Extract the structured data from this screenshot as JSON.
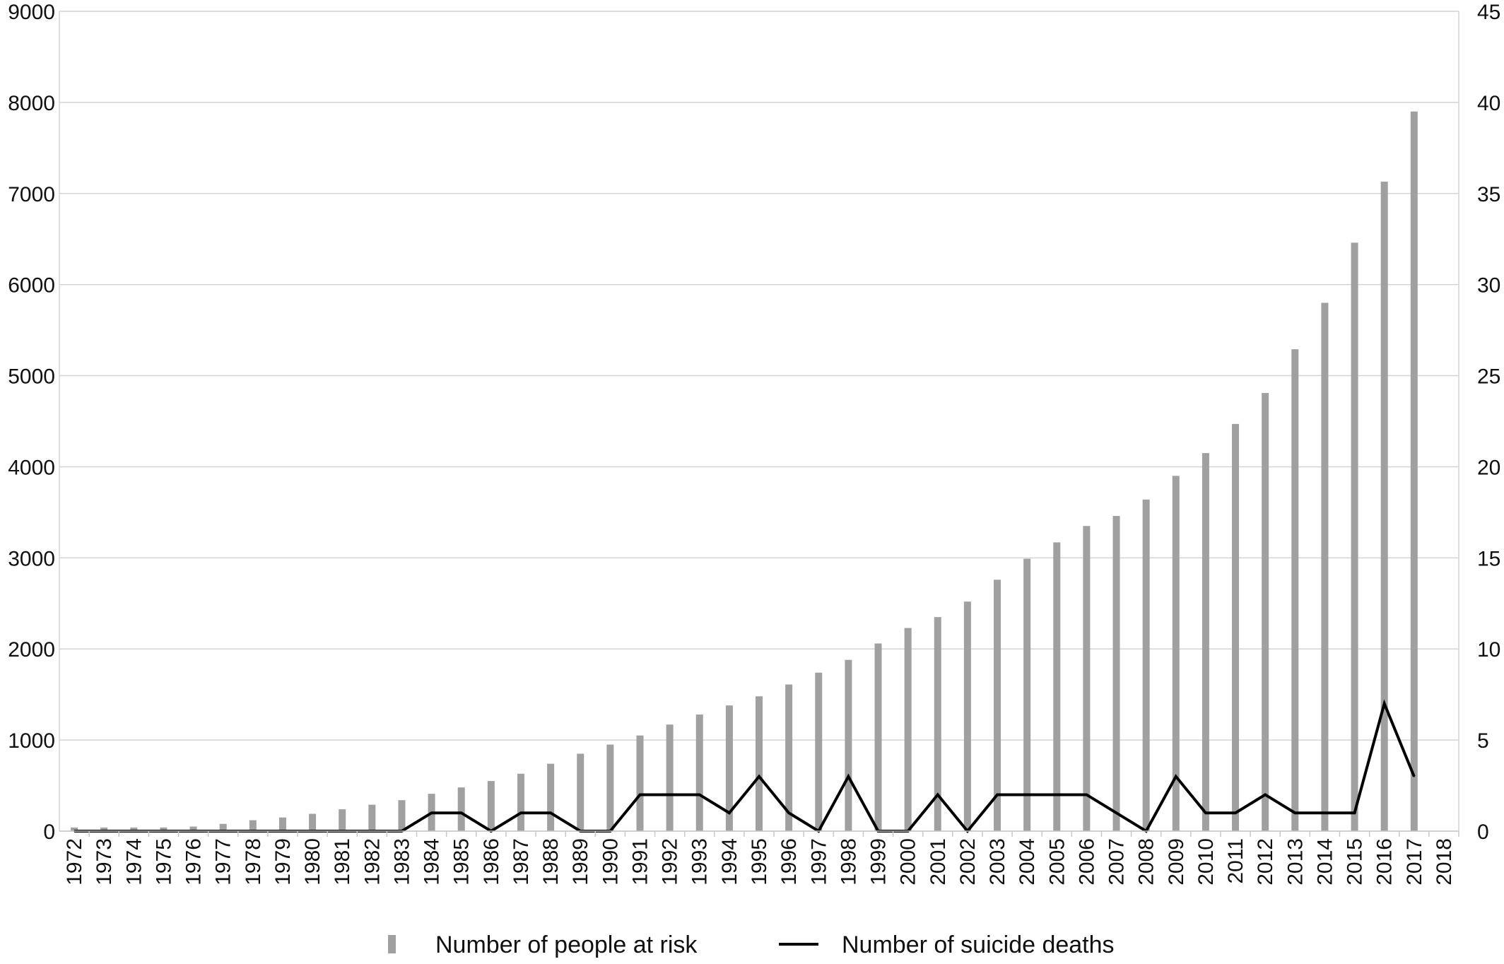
{
  "chart_data": {
    "type": "bar",
    "categories": [
      "1972",
      "1973",
      "1974",
      "1975",
      "1976",
      "1977",
      "1978",
      "1979",
      "1980",
      "1981",
      "1982",
      "1983",
      "1984",
      "1985",
      "1986",
      "1987",
      "1988",
      "1989",
      "1990",
      "1991",
      "1992",
      "1993",
      "1994",
      "1995",
      "1996",
      "1997",
      "1998",
      "1999",
      "2000",
      "2001",
      "2002",
      "2003",
      "2004",
      "2005",
      "2006",
      "2007",
      "2008",
      "2009",
      "2010",
      "2011",
      "2012",
      "2013",
      "2014",
      "2015",
      "2016",
      "2017",
      "2018"
    ],
    "series": [
      {
        "name": "Number of people at risk",
        "type": "bar",
        "axis": "left",
        "color": "#a0a0a0",
        "values": [
          40,
          40,
          40,
          40,
          50,
          80,
          120,
          150,
          190,
          240,
          290,
          340,
          410,
          480,
          550,
          630,
          740,
          850,
          950,
          1050,
          1170,
          1280,
          1380,
          1480,
          1610,
          1740,
          1880,
          2060,
          2230,
          2350,
          2520,
          2760,
          2990,
          3170,
          3350,
          3460,
          3640,
          3900,
          4150,
          4470,
          4810,
          5290,
          5800,
          6460,
          7130,
          7900,
          null
        ]
      },
      {
        "name": "Number of suicide deaths",
        "type": "line",
        "axis": "right",
        "color": "#000000",
        "values": [
          0,
          0,
          0,
          0,
          0,
          0,
          0,
          0,
          0,
          0,
          0,
          0,
          1,
          1,
          0,
          1,
          1,
          0,
          0,
          2,
          2,
          2,
          1,
          3,
          1,
          0,
          3,
          0,
          0,
          2,
          0,
          2,
          2,
          2,
          2,
          1,
          0,
          3,
          1,
          1,
          2,
          1,
          1,
          1,
          7,
          3,
          null
        ]
      }
    ],
    "y_left": {
      "ylim": [
        0,
        9000
      ],
      "ticks": [
        "0",
        "1000",
        "2000",
        "3000",
        "4000",
        "5000",
        "6000",
        "7000",
        "8000",
        "9000"
      ]
    },
    "y_right": {
      "ylim": [
        0,
        45
      ],
      "ticks": [
        "0",
        "5",
        "10",
        "15",
        "20",
        "25",
        "30",
        "35",
        "40",
        "45"
      ]
    },
    "grid": true,
    "legend_position": "bottom"
  }
}
